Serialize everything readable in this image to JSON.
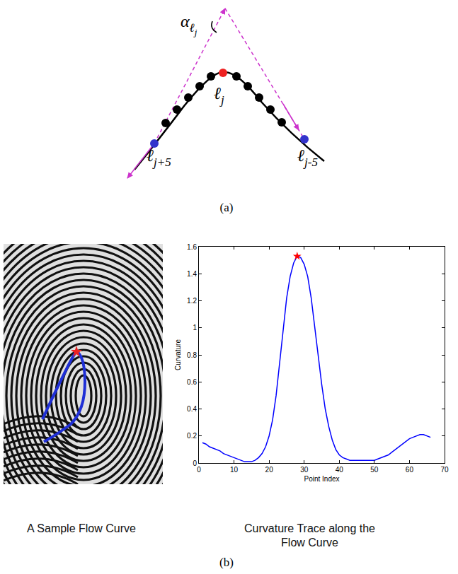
{
  "panels": {
    "a": {
      "caption": "(a)",
      "labels": {
        "alpha": {
          "base": "α",
          "sub": "ℓ",
          "subsub": "j"
        },
        "center": {
          "base": "ℓ",
          "sub": "j"
        },
        "left": {
          "base": "ℓ",
          "sub": "j+5"
        },
        "right": {
          "base": "ℓ",
          "sub": "j-5"
        }
      }
    },
    "b": {
      "caption": "(b)",
      "image_caption": "A Sample Flow Curve",
      "chart_caption": "Curvature Trace along the Flow Curve"
    }
  },
  "chart_data": {
    "type": "line",
    "xlabel": "Point Index",
    "ylabel": "Curvature",
    "x": [
      1,
      2,
      3,
      4,
      5,
      6,
      7,
      8,
      9,
      10,
      11,
      12,
      13,
      14,
      15,
      16,
      17,
      18,
      19,
      20,
      21,
      22,
      23,
      24,
      25,
      26,
      27,
      28,
      29,
      30,
      31,
      32,
      33,
      34,
      35,
      36,
      37,
      38,
      39,
      40,
      41,
      42,
      43,
      44,
      45,
      46,
      47,
      48,
      49,
      50,
      51,
      52,
      53,
      54,
      55,
      56,
      57,
      58,
      59,
      60,
      61,
      62,
      63,
      64,
      65,
      66
    ],
    "series": [
      {
        "color": "#0000ff",
        "values": [
          0.15,
          0.14,
          0.12,
          0.11,
          0.1,
          0.09,
          0.07,
          0.06,
          0.05,
          0.04,
          0.03,
          0.02,
          0.01,
          0.01,
          0.01,
          0.02,
          0.04,
          0.07,
          0.12,
          0.2,
          0.32,
          0.5,
          0.75,
          1.0,
          1.22,
          1.38,
          1.48,
          1.53,
          1.52,
          1.47,
          1.38,
          1.22,
          1.0,
          0.78,
          0.58,
          0.4,
          0.27,
          0.17,
          0.1,
          0.06,
          0.04,
          0.03,
          0.02,
          0.02,
          0.02,
          0.02,
          0.02,
          0.02,
          0.02,
          0.02,
          0.03,
          0.04,
          0.05,
          0.06,
          0.08,
          0.1,
          0.12,
          0.14,
          0.16,
          0.18,
          0.19,
          0.2,
          0.21,
          0.21,
          0.2,
          0.19
        ]
      },
      {
        "type": "scatter",
        "marker": "star",
        "color": "#ff0000",
        "x": [
          28
        ],
        "values": [
          1.53
        ]
      }
    ],
    "xlim": [
      0,
      70
    ],
    "ylim": [
      0,
      1.6
    ],
    "xticks": [
      0,
      10,
      20,
      30,
      40,
      50,
      60,
      70
    ],
    "yticks": [
      0,
      0.2,
      0.4,
      0.6,
      0.8,
      1,
      1.2,
      1.4,
      1.6
    ],
    "grid": false
  }
}
